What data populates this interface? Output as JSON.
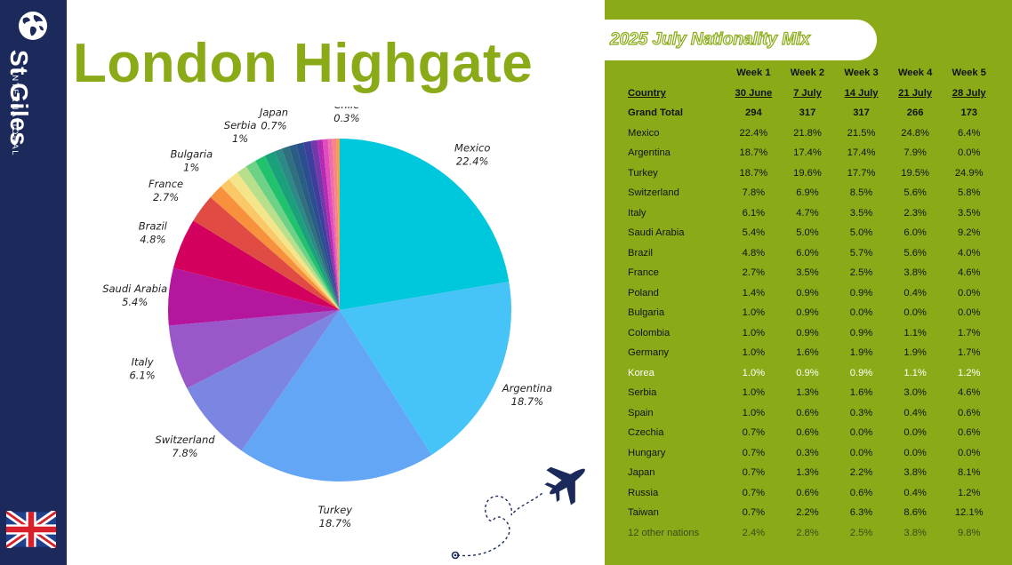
{
  "brand": {
    "name": "St Giles",
    "subtitle": "INTERNATIONAL"
  },
  "title": "London Highgate",
  "panel": {
    "title": "2025 July Nationality Mix"
  },
  "table": {
    "week_headers": [
      "Week 1",
      "Week 2",
      "Week 3",
      "Week 4",
      "Week 5"
    ],
    "country_header": "Country",
    "dates": [
      "30 June",
      "7 July",
      "14 July",
      "21 July",
      "28 July"
    ],
    "total_label": "Grand Total",
    "totals": [
      "294",
      "317",
      "317",
      "266",
      "173"
    ],
    "rows": [
      {
        "country": "Mexico",
        "values": [
          "22.4%",
          "21.8%",
          "21.5%",
          "24.8%",
          "6.4%"
        ]
      },
      {
        "country": "Argentina",
        "values": [
          "18.7%",
          "17.4%",
          "17.4%",
          "7.9%",
          "0.0%"
        ]
      },
      {
        "country": "Turkey",
        "values": [
          "18.7%",
          "19.6%",
          "17.7%",
          "19.5%",
          "24.9%"
        ]
      },
      {
        "country": "Switzerland",
        "values": [
          "7.8%",
          "6.9%",
          "8.5%",
          "5.6%",
          "5.8%"
        ]
      },
      {
        "country": "Italy",
        "values": [
          "6.1%",
          "4.7%",
          "3.5%",
          "2.3%",
          "3.5%"
        ]
      },
      {
        "country": "Saudi Arabia",
        "values": [
          "5.4%",
          "5.0%",
          "5.0%",
          "6.0%",
          "9.2%"
        ]
      },
      {
        "country": "Brazil",
        "values": [
          "4.8%",
          "6.0%",
          "5.7%",
          "5.6%",
          "4.0%"
        ]
      },
      {
        "country": "France",
        "values": [
          "2.7%",
          "3.5%",
          "2.5%",
          "3.8%",
          "4.6%"
        ]
      },
      {
        "country": "Poland",
        "values": [
          "1.4%",
          "0.9%",
          "0.9%",
          "0.4%",
          "0.0%"
        ]
      },
      {
        "country": "Bulgaria",
        "values": [
          "1.0%",
          "0.9%",
          "0.0%",
          "0.0%",
          "0.0%"
        ]
      },
      {
        "country": "Colombia",
        "values": [
          "1.0%",
          "0.9%",
          "0.9%",
          "1.1%",
          "1.7%"
        ]
      },
      {
        "country": "Germany",
        "values": [
          "1.0%",
          "1.6%",
          "1.9%",
          "1.9%",
          "1.7%"
        ]
      },
      {
        "country": "Korea",
        "values": [
          "1.0%",
          "0.9%",
          "0.9%",
          "1.1%",
          "1.2%"
        ]
      },
      {
        "country": "Serbia",
        "values": [
          "1.0%",
          "1.3%",
          "1.6%",
          "3.0%",
          "4.6%"
        ]
      },
      {
        "country": "Spain",
        "values": [
          "1.0%",
          "0.6%",
          "0.3%",
          "0.4%",
          "0.6%"
        ]
      },
      {
        "country": "Czechia",
        "values": [
          "0.7%",
          "0.6%",
          "0.0%",
          "0.0%",
          "0.6%"
        ]
      },
      {
        "country": "Hungary",
        "values": [
          "0.7%",
          "0.3%",
          "0.0%",
          "0.0%",
          "0.0%"
        ]
      },
      {
        "country": "Japan",
        "values": [
          "0.7%",
          "1.3%",
          "2.2%",
          "3.8%",
          "8.1%"
        ]
      },
      {
        "country": "Russia",
        "values": [
          "0.7%",
          "0.6%",
          "0.6%",
          "0.4%",
          "1.2%"
        ]
      },
      {
        "country": "Taiwan",
        "values": [
          "0.7%",
          "2.2%",
          "6.3%",
          "8.6%",
          "12.1%"
        ]
      },
      {
        "country": "12 other nations",
        "values": [
          "2.4%",
          "2.8%",
          "2.5%",
          "3.8%",
          "9.8%"
        ]
      }
    ]
  },
  "chart_data": {
    "type": "pie",
    "title": "",
    "start_angle_deg": 0,
    "direction": "clockwise",
    "slices": [
      {
        "label": "Mexico",
        "value": 22.4,
        "color": "#00c8dc",
        "show_label": true
      },
      {
        "label": "Argentina",
        "value": 18.7,
        "color": "#46c3f7",
        "show_label": true
      },
      {
        "label": "Turkey",
        "value": 18.7,
        "color": "#63a6f5",
        "show_label": true
      },
      {
        "label": "Switzerland",
        "value": 7.8,
        "color": "#7a86e2",
        "show_label": true
      },
      {
        "label": "Italy",
        "value": 6.1,
        "color": "#9a57c9",
        "show_label": true
      },
      {
        "label": "Saudi Arabia",
        "value": 5.4,
        "color": "#b5169e",
        "show_label": true
      },
      {
        "label": "Brazil",
        "value": 4.8,
        "color": "#d4005e",
        "show_label": true
      },
      {
        "label": "France",
        "value": 2.7,
        "color": "#e04c44",
        "show_label": true
      },
      {
        "label": "Poland",
        "value": 1.4,
        "color": "#f7913d",
        "show_label": false
      },
      {
        "label": "Bulgaria",
        "value": 1.0,
        "color": "#fbc868",
        "show_label": true
      },
      {
        "label": "Colombia",
        "value": 1.0,
        "color": "#f5e58a",
        "show_label": false
      },
      {
        "label": "Germany",
        "value": 1.0,
        "color": "#b8e08c",
        "show_label": false
      },
      {
        "label": "Korea",
        "value": 1.0,
        "color": "#6dd286",
        "show_label": false
      },
      {
        "label": "Serbia",
        "value": 1.0,
        "color": "#20c26e",
        "show_label": true
      },
      {
        "label": "Spain",
        "value": 1.0,
        "color": "#1aa07a",
        "show_label": false
      },
      {
        "label": "Czechia",
        "value": 0.7,
        "color": "#2b8a86",
        "show_label": false
      },
      {
        "label": "Hungary",
        "value": 0.7,
        "color": "#2f6f7e",
        "show_label": false
      },
      {
        "label": "Japan",
        "value": 0.7,
        "color": "#2a5d84",
        "show_label": true
      },
      {
        "label": "Russia",
        "value": 0.7,
        "color": "#2a4e8f",
        "show_label": false
      },
      {
        "label": "Taiwan",
        "value": 0.7,
        "color": "#3e3f9c",
        "show_label": false
      },
      {
        "label": "",
        "value": 0.6,
        "color": "#7438a8",
        "show_label": false
      },
      {
        "label": "",
        "value": 0.5,
        "color": "#b52ab5",
        "show_label": false
      },
      {
        "label": "",
        "value": 0.5,
        "color": "#e04dbf",
        "show_label": false
      },
      {
        "label": "",
        "value": 0.4,
        "color": "#f06da8",
        "show_label": false
      },
      {
        "label": "",
        "value": 0.4,
        "color": "#f48888",
        "show_label": false
      },
      {
        "label": "Chile",
        "value": 0.3,
        "color": "#f4a24a",
        "show_label": true
      }
    ],
    "labels": [
      {
        "name": "Mexico",
        "value": "22.4%"
      },
      {
        "name": "Argentina",
        "value": "18.7%"
      },
      {
        "name": "Turkey",
        "value": "18.7%"
      },
      {
        "name": "Switzerland",
        "value": "7.8%"
      },
      {
        "name": "Italy",
        "value": "6.1%"
      },
      {
        "name": "Saudi Arabia",
        "value": "5.4%"
      },
      {
        "name": "Brazil",
        "value": "4.8%"
      },
      {
        "name": "France",
        "value": "2.7%"
      },
      {
        "name": "Bulgaria",
        "value": "1%"
      },
      {
        "name": "Serbia",
        "value": "1%"
      },
      {
        "name": "Japan",
        "value": "0.7%"
      },
      {
        "name": "Chile",
        "value": "0.3%"
      }
    ]
  }
}
